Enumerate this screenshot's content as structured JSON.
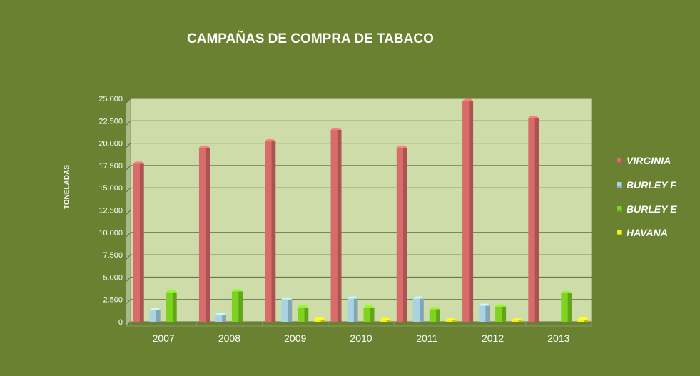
{
  "chart_data": {
    "type": "bar",
    "title": "CAMPAÑAS DE COMPRA DE TABACO",
    "ylabel": "TONELADAS",
    "categories": [
      "2007",
      "2008",
      "2009",
      "2010",
      "2011",
      "2012",
      "2013"
    ],
    "ylim": [
      0,
      25000
    ],
    "yticks": [
      0,
      2500,
      5000,
      7500,
      10000,
      12500,
      15000,
      17500,
      20000,
      22500,
      25000
    ],
    "ytick_labels": [
      "0",
      "2.500",
      "5.000",
      "7.500",
      "10.000",
      "12.500",
      "15.000",
      "17.500",
      "20.000",
      "22.500",
      "25.000"
    ],
    "grid": true,
    "legend_position": "right",
    "series": [
      {
        "name": "VIRGINIA",
        "color": "#d96b6b",
        "values": [
          17700,
          19500,
          20200,
          21500,
          19500,
          24700,
          22800
        ]
      },
      {
        "name": "BURLEY F",
        "color": "#a9d3e4",
        "values": [
          1300,
          800,
          2500,
          2600,
          2600,
          1800,
          0
        ]
      },
      {
        "name": "BURLEY E",
        "color": "#7ed321",
        "values": [
          3300,
          3400,
          1600,
          1600,
          1400,
          1700,
          3200
        ]
      },
      {
        "name": "HAVANA",
        "color": "#f2f21a",
        "values": [
          0,
          0,
          250,
          200,
          150,
          150,
          250
        ]
      }
    ]
  }
}
